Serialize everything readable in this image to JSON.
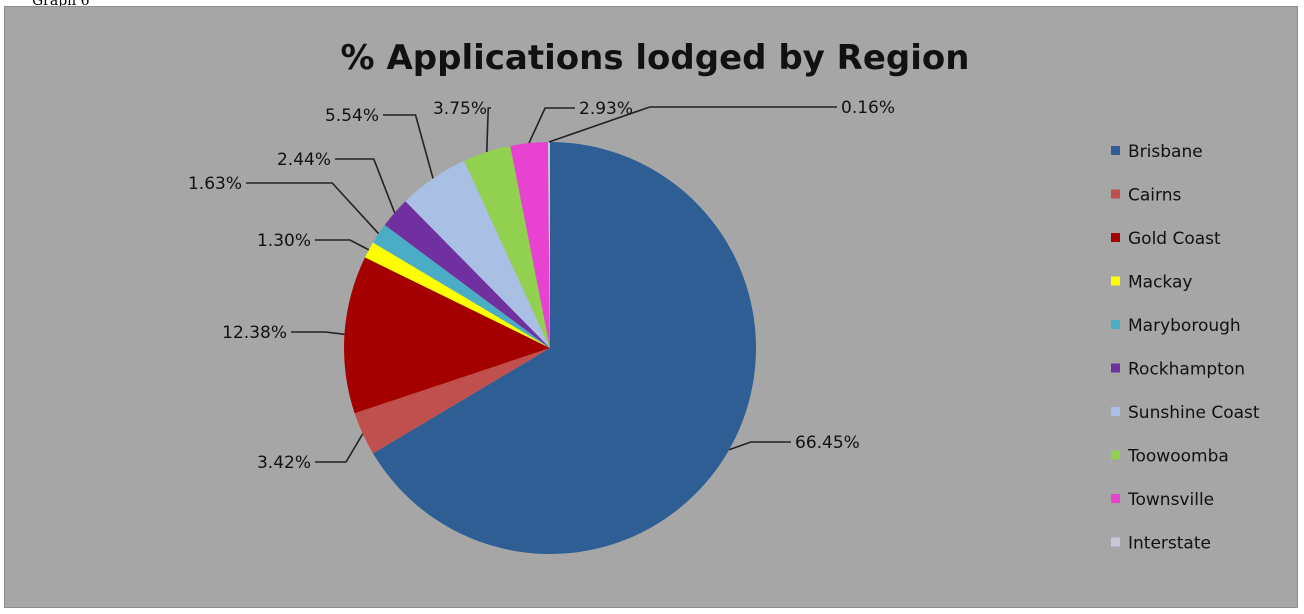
{
  "caption": "Graph 6",
  "chart_data": {
    "type": "pie",
    "title": "% Applications lodged by Region",
    "categories": [
      "Brisbane",
      "Cairns",
      "Gold Coast",
      "Mackay",
      "Maryborough",
      "Rockhampton",
      "Sunshine Coast",
      "Toowoomba",
      "Townsville",
      "Interstate"
    ],
    "values": [
      66.45,
      3.42,
      12.38,
      1.3,
      1.63,
      2.44,
      5.54,
      3.75,
      2.93,
      0.16
    ],
    "labels": [
      "66.45%",
      "3.42%",
      "12.38%",
      "1.30%",
      "1.63%",
      "2.44%",
      "5.54%",
      "3.75%",
      "2.93%",
      "0.16%"
    ],
    "colors": [
      "#2f5e95",
      "#c0504d",
      "#a50000",
      "#ffff00",
      "#4bacc6",
      "#7030a0",
      "#a9bfe3",
      "#92d050",
      "#e843d0",
      "#c8c8d8"
    ],
    "legend_position": "right",
    "start_angle": "top, clockwise"
  }
}
